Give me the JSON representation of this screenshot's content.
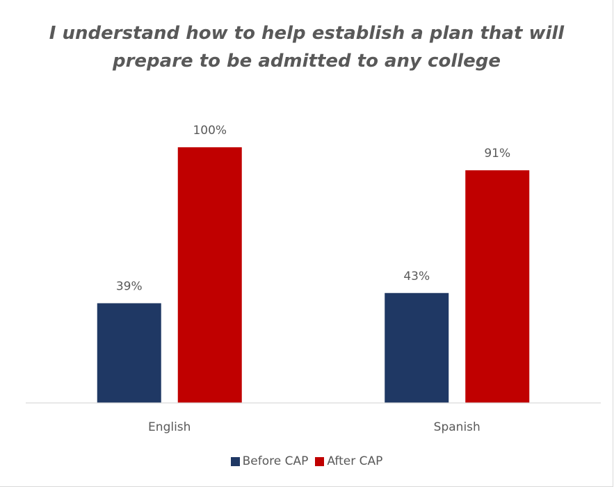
{
  "chart_data": {
    "type": "bar",
    "title_lines": [
      "I understand how to help establish a plan that will",
      "prepare to be admitted to any college"
    ],
    "categories": [
      "English",
      "Spanish"
    ],
    "series": [
      {
        "name": "Before CAP",
        "color": "#1f3864",
        "values": [
          39,
          43
        ],
        "labels": [
          "39%",
          "43%"
        ]
      },
      {
        "name": "After CAP",
        "color": "#c00000",
        "values": [
          100,
          91
        ],
        "labels": [
          "100%",
          "91%"
        ]
      }
    ],
    "ylim": [
      0,
      100
    ],
    "yaxis_visible": false,
    "grid": false,
    "legend_position": "bottom",
    "data_label_color": "#595959",
    "axis_line_color": "#d9d9d9"
  }
}
